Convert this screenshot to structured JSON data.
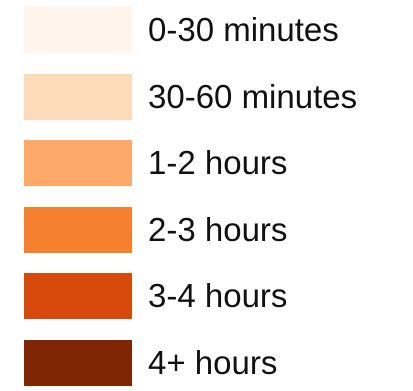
{
  "chart_data": {
    "type": "legend",
    "entries": [
      {
        "label": "0-30 minutes",
        "color": "#fef4eb"
      },
      {
        "label": "30-60 minutes",
        "color": "#fddbb9"
      },
      {
        "label": "1-2 hours",
        "color": "#fca96a"
      },
      {
        "label": "2-3 hours",
        "color": "#f47f2e"
      },
      {
        "label": "3-4 hours",
        "color": "#d74a0c"
      },
      {
        "label": "4+ hours",
        "color": "#7f2704"
      }
    ]
  }
}
